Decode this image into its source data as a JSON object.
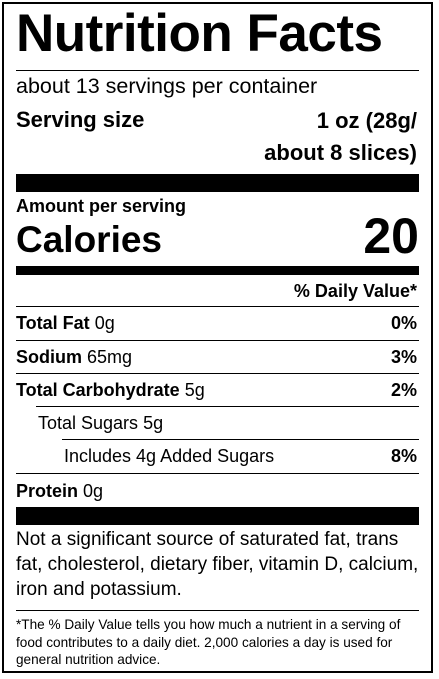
{
  "label": {
    "title": "Nutrition Facts",
    "servings_per_container": "about 13 servings per container",
    "serving_size_label": "Serving size",
    "serving_size_value": "1 oz (28g/\nabout 8 slices)",
    "amount_per_serving": "Amount per serving",
    "calories_label": "Calories",
    "calories_value": "20",
    "daily_value_header": "% Daily Value*",
    "nutrients": [
      {
        "name": "Total Fat",
        "amount": "0g",
        "dv": "0%"
      },
      {
        "name": "Sodium",
        "amount": "65mg",
        "dv": "3%"
      },
      {
        "name": "Total Carbohydrate",
        "amount": "5g",
        "dv": "2%"
      },
      {
        "name": "Total Sugars",
        "amount": "5g",
        "dv": ""
      },
      {
        "name": "Includes 4g Added Sugars",
        "amount": "",
        "dv": "8%"
      },
      {
        "name": "Protein",
        "amount": "0g",
        "dv": ""
      }
    ],
    "footnote_main": "Not a significant source of saturated fat, trans fat, cholesterol, dietary fiber, vitamin D, calcium, iron and potassium.",
    "footnote_small": "*The % Daily Value tells you how much a nutrient in a serving of food contributes to a daily diet. 2,000 calories a day is used for general nutrition advice."
  }
}
